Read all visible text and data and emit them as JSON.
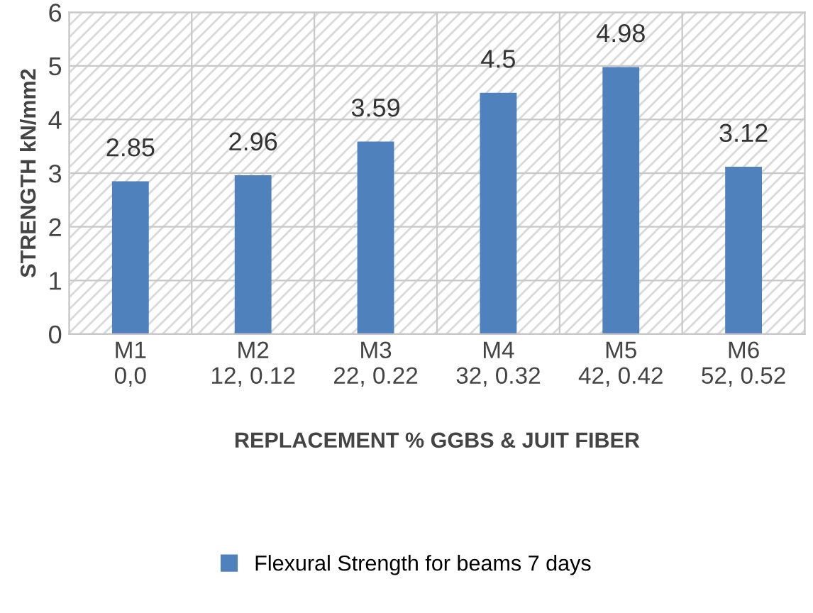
{
  "chart_data": {
    "type": "bar",
    "xlabel": "REPLACEMENT % GGBS & JUIT FIBER",
    "ylabel": "STRENGTH kN/mm2",
    "categories": [
      "M1 0,0",
      "M2 12, 0.12",
      "M3 22, 0.22",
      "M4 32, 0.32",
      "M5 42, 0.42",
      "M6 52, 0.52"
    ],
    "series": [
      {
        "name": "Flexural Strength for beams 7 days",
        "color": "#4f81bd",
        "values": [
          2.85,
          2.96,
          3.59,
          4.5,
          4.98,
          3.12
        ]
      }
    ],
    "ylim": [
      0,
      6
    ],
    "yticks": [
      0,
      1,
      2,
      3,
      4,
      5,
      6
    ],
    "grid": true,
    "legend": "bottom",
    "data_labels": true
  }
}
